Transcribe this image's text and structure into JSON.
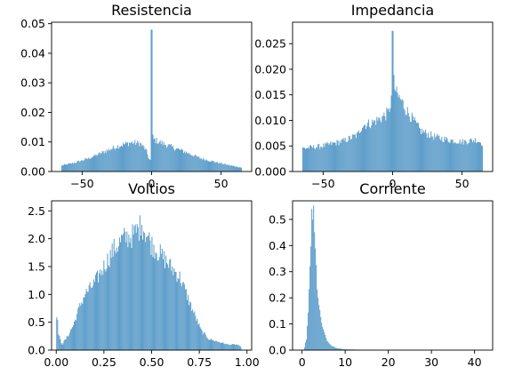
{
  "chart_data": [
    {
      "type": "histogram",
      "title": "Resistencia",
      "xlim": [
        -72,
        72
      ],
      "ylim": [
        0,
        0.0505
      ],
      "xticks": [
        -50,
        0,
        50
      ],
      "xtick_labels": [
        "−50",
        "0",
        "50"
      ],
      "yticks": [
        0.0,
        0.01,
        0.02,
        0.03,
        0.04,
        0.05
      ],
      "ytick_labels": [
        "0.00",
        "0.01",
        "0.02",
        "0.03",
        "0.04",
        "0.05"
      ],
      "color": "#5a9bc9",
      "points": [
        [
          -65,
          0.002
        ],
        [
          -55,
          0.003
        ],
        [
          -45,
          0.0045
        ],
        [
          -35,
          0.0065
        ],
        [
          -25,
          0.0085
        ],
        [
          -15,
          0.0098
        ],
        [
          -8,
          0.0095
        ],
        [
          -4,
          0.0072
        ],
        [
          -2,
          0.0045
        ],
        [
          -1,
          0.0035
        ],
        [
          -0.2,
          0.012
        ],
        [
          0,
          0.048
        ],
        [
          0.3,
          0.026
        ],
        [
          1,
          0.011
        ],
        [
          3,
          0.0105
        ],
        [
          8,
          0.0095
        ],
        [
          15,
          0.0082
        ],
        [
          25,
          0.0065
        ],
        [
          35,
          0.0045
        ],
        [
          45,
          0.0033
        ],
        [
          55,
          0.0022
        ],
        [
          65,
          0.0013
        ]
      ]
    },
    {
      "type": "histogram",
      "title": "Impedancia",
      "xlim": [
        -72,
        72
      ],
      "ylim": [
        0,
        0.0292
      ],
      "xticks": [
        -50,
        0,
        50
      ],
      "xtick_labels": [
        "−50",
        "0",
        "50"
      ],
      "yticks": [
        0.0,
        0.005,
        0.01,
        0.015,
        0.02,
        0.025
      ],
      "ytick_labels": [
        "0.000",
        "0.005",
        "0.010",
        "0.015",
        "0.020",
        "0.025"
      ],
      "color": "#5a9bc9",
      "points": [
        [
          -65,
          0.0045
        ],
        [
          -50,
          0.005
        ],
        [
          -35,
          0.006
        ],
        [
          -25,
          0.0072
        ],
        [
          -22,
          0.009
        ],
        [
          -15,
          0.0095
        ],
        [
          -8,
          0.0105
        ],
        [
          -3,
          0.0115
        ],
        [
          -1,
          0.014
        ],
        [
          0,
          0.0275
        ],
        [
          1,
          0.017
        ],
        [
          3,
          0.015
        ],
        [
          6,
          0.014
        ],
        [
          10,
          0.012
        ],
        [
          20,
          0.008
        ],
        [
          30,
          0.0068
        ],
        [
          40,
          0.0062
        ],
        [
          50,
          0.0058
        ],
        [
          60,
          0.0062
        ],
        [
          65,
          0.0055
        ]
      ]
    },
    {
      "type": "histogram",
      "title": "Voltios",
      "xlim": [
        -0.0244,
        1.0244
      ],
      "ylim": [
        0,
        2.68
      ],
      "xticks": [
        0.0,
        0.25,
        0.5,
        0.75,
        1.0
      ],
      "xtick_labels": [
        "0.00",
        "0.25",
        "0.50",
        "0.75",
        "1.00"
      ],
      "yticks": [
        0.0,
        0.5,
        1.0,
        1.5,
        2.0,
        2.5
      ],
      "ytick_labels": [
        "0.0",
        "0.5",
        "1.0",
        "1.5",
        "2.0",
        "2.5"
      ],
      "color": "#5a9bc9",
      "points": [
        [
          0.0,
          0.25
        ],
        [
          0.005,
          0.85
        ],
        [
          0.01,
          0.3
        ],
        [
          0.03,
          0.1
        ],
        [
          0.06,
          0.25
        ],
        [
          0.09,
          0.45
        ],
        [
          0.12,
          0.75
        ],
        [
          0.15,
          1.0
        ],
        [
          0.2,
          1.2
        ],
        [
          0.25,
          1.5
        ],
        [
          0.3,
          1.8
        ],
        [
          0.35,
          2.0
        ],
        [
          0.4,
          2.05
        ],
        [
          0.45,
          2.25
        ],
        [
          0.5,
          1.9
        ],
        [
          0.55,
          1.7
        ],
        [
          0.6,
          1.5
        ],
        [
          0.65,
          1.3
        ],
        [
          0.7,
          0.85
        ],
        [
          0.73,
          0.6
        ],
        [
          0.76,
          0.35
        ],
        [
          0.8,
          0.2
        ],
        [
          0.85,
          0.15
        ],
        [
          0.9,
          0.1
        ],
        [
          0.95,
          0.1
        ],
        [
          0.97,
          0.05
        ]
      ]
    },
    {
      "type": "histogram",
      "title": "Corriente",
      "xlim": [
        -2.2,
        44.2
      ],
      "ylim": [
        0,
        0.571
      ],
      "xticks": [
        0,
        10,
        20,
        30,
        40
      ],
      "xtick_labels": [
        "0",
        "10",
        "20",
        "30",
        "40"
      ],
      "yticks": [
        0.0,
        0.1,
        0.2,
        0.3,
        0.4,
        0.5
      ],
      "ytick_labels": [
        "0.0",
        "0.1",
        "0.2",
        "0.3",
        "0.4",
        "0.5"
      ],
      "color": "#5a9bc9",
      "points": [
        [
          0.5,
          0.005
        ],
        [
          1.0,
          0.04
        ],
        [
          1.5,
          0.15
        ],
        [
          2.0,
          0.38
        ],
        [
          2.3,
          0.54
        ],
        [
          2.7,
          0.5
        ],
        [
          3.0,
          0.4
        ],
        [
          3.5,
          0.25
        ],
        [
          4.0,
          0.15
        ],
        [
          5.0,
          0.07
        ],
        [
          6.0,
          0.03
        ],
        [
          7.0,
          0.015
        ],
        [
          8.0,
          0.008
        ],
        [
          10.0,
          0.003
        ],
        [
          15.0,
          0.001
        ],
        [
          20.0,
          0.0
        ],
        [
          42.0,
          0.0
        ]
      ]
    }
  ]
}
